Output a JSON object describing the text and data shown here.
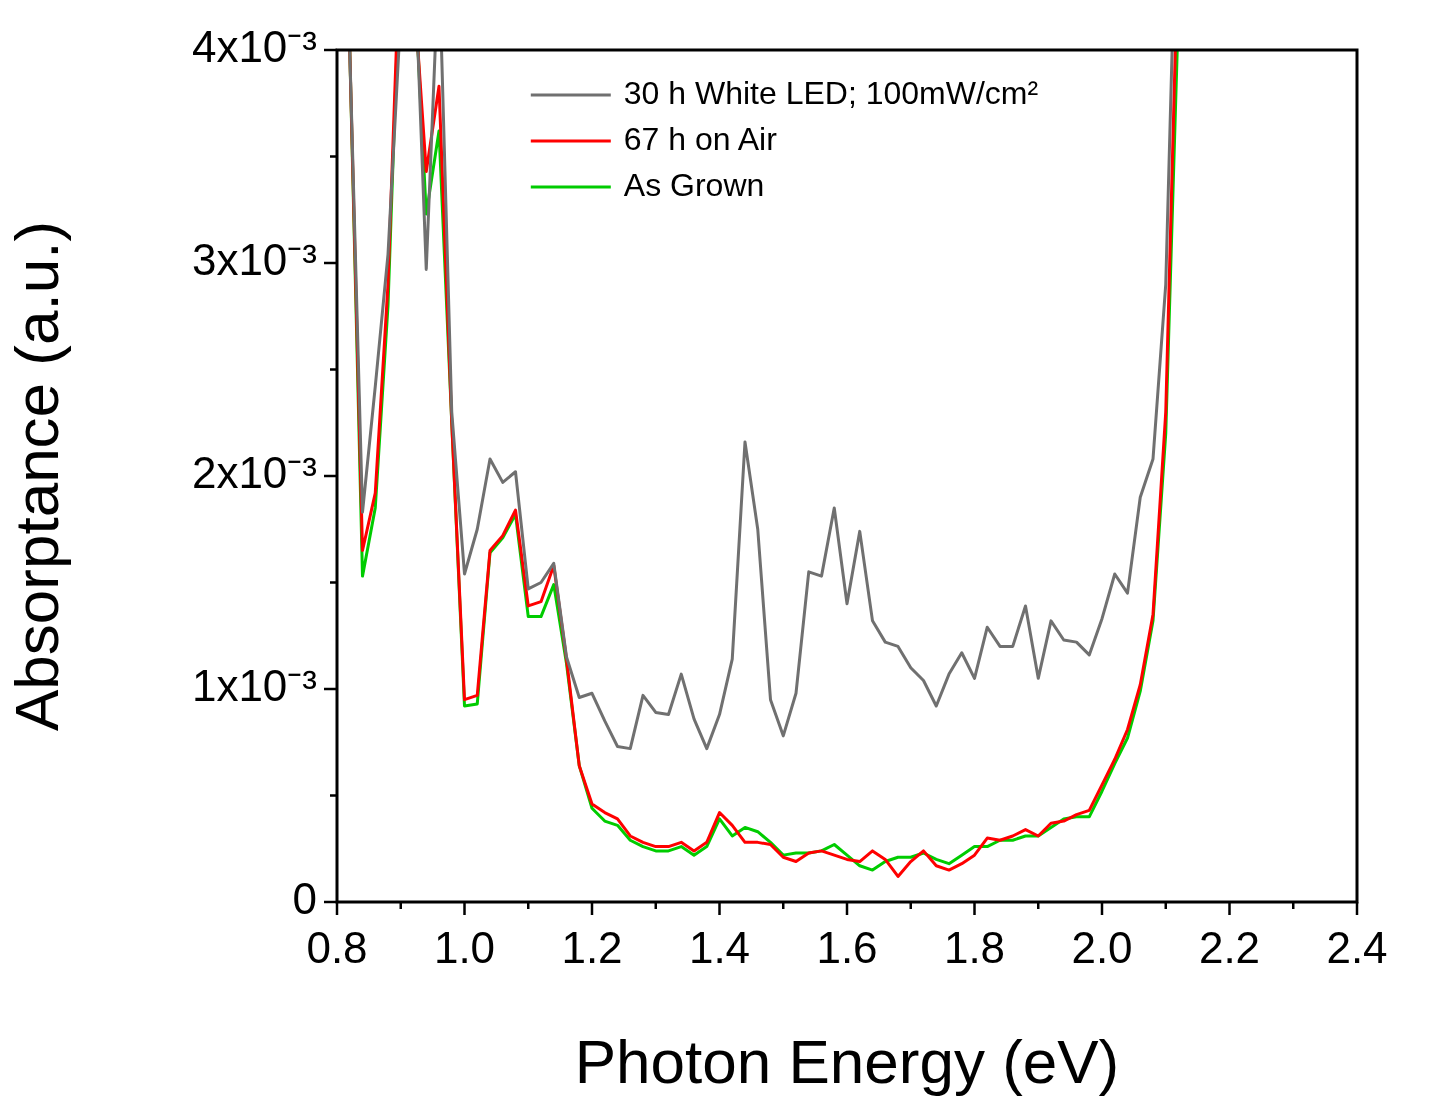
{
  "chart_data": {
    "type": "line",
    "xlabel": "Photon Energy (eV)",
    "ylabel": "Absorptance (a.u.)",
    "xlim": [
      0.8,
      2.4
    ],
    "xticks": [
      0.8,
      {
        "value": 0.9,
        "label": null
      },
      {
        "value": 1.0,
        "label": "1.0"
      },
      {
        "value": 1.1,
        "label": null
      },
      1.2,
      {
        "value": 1.3,
        "label": null
      },
      1.4,
      {
        "value": 1.5,
        "label": null
      },
      1.6,
      {
        "value": 1.7,
        "label": null
      },
      1.8,
      {
        "value": 1.9,
        "label": null
      },
      {
        "value": 2.0,
        "label": "2.0"
      },
      {
        "value": 2.1,
        "label": null
      },
      2.2,
      {
        "value": 2.3,
        "label": null
      },
      2.4
    ],
    "ylim": [
      0,
      0.004
    ],
    "yticks": [
      0,
      {
        "value": 0.0005,
        "label": null
      },
      {
        "value": 0.001,
        "label": "1x10⁻³"
      },
      {
        "value": 0.0015,
        "label": null
      },
      {
        "value": 0.002,
        "label": "2x10⁻³"
      },
      {
        "value": 0.0025,
        "label": null
      },
      {
        "value": 0.003,
        "label": "3x10⁻³"
      },
      {
        "value": 0.0035,
        "label": null
      },
      {
        "value": 0.004,
        "label": "4x10⁻³"
      }
    ],
    "grid": false,
    "legend": "top",
    "marker": "none",
    "line_style": "solid",
    "series": [
      {
        "name": "30 h White LED; 100mW/cm²",
        "color": "#707070",
        "x": [
          0.82,
          0.84,
          0.86,
          0.88,
          0.897,
          0.91,
          0.927,
          0.94,
          0.954,
          0.96,
          0.964,
          0.98,
          1.0,
          1.02,
          1.04,
          1.06,
          1.08,
          1.1,
          1.12,
          1.14,
          1.16,
          1.18,
          1.2,
          1.22,
          1.24,
          1.26,
          1.28,
          1.3,
          1.32,
          1.34,
          1.36,
          1.38,
          1.4,
          1.42,
          1.44,
          1.46,
          1.48,
          1.5,
          1.52,
          1.54,
          1.56,
          1.58,
          1.6,
          1.62,
          1.64,
          1.66,
          1.68,
          1.7,
          1.72,
          1.74,
          1.76,
          1.78,
          1.8,
          1.82,
          1.84,
          1.86,
          1.88,
          1.9,
          1.92,
          1.94,
          1.96,
          1.98,
          2.0,
          2.02,
          2.04,
          2.06,
          2.08,
          2.1,
          2.11
        ],
        "values": [
          0.004,
          0.00183,
          0.00242,
          0.00304,
          0.004,
          null,
          0.004,
          0.00297,
          0.004,
          null,
          0.004,
          0.0023,
          0.00154,
          0.00175,
          0.00208,
          0.00197,
          0.00202,
          0.00147,
          0.0015,
          0.00159,
          0.00115,
          0.00096,
          0.00098,
          0.00085,
          0.00073,
          0.00072,
          0.00097,
          0.00089,
          0.00088,
          0.00107,
          0.00086,
          0.00072,
          0.00088,
          0.00114,
          0.00216,
          0.00175,
          0.00095,
          0.00078,
          0.00098,
          0.00155,
          0.00153,
          0.00185,
          0.0014,
          0.00174,
          0.00132,
          0.00122,
          0.0012,
          0.0011,
          0.00104,
          0.00092,
          0.00107,
          0.00117,
          0.00105,
          0.00129,
          0.0012,
          0.0012,
          0.00139,
          0.00105,
          0.00132,
          0.00123,
          0.00122,
          0.00116,
          0.00133,
          0.00154,
          0.00145,
          0.0019,
          0.00208,
          0.0029,
          0.004
        ]
      },
      {
        "name": "67 h on Air",
        "color": "#ff0000",
        "x": [
          0.82,
          0.84,
          0.86,
          0.88,
          0.893,
          0.91,
          0.927,
          0.94,
          0.96,
          0.98,
          1.0,
          1.02,
          1.04,
          1.06,
          1.08,
          1.1,
          1.12,
          1.14,
          1.16,
          1.18,
          1.2,
          1.22,
          1.24,
          1.26,
          1.28,
          1.3,
          1.32,
          1.34,
          1.36,
          1.38,
          1.4,
          1.42,
          1.44,
          1.46,
          1.48,
          1.5,
          1.52,
          1.54,
          1.56,
          1.58,
          1.6,
          1.62,
          1.64,
          1.66,
          1.68,
          1.7,
          1.72,
          1.74,
          1.76,
          1.78,
          1.8,
          1.82,
          1.84,
          1.86,
          1.88,
          1.9,
          1.92,
          1.94,
          1.96,
          1.98,
          2.0,
          2.02,
          2.04,
          2.06,
          2.08,
          2.1,
          2.115
        ],
        "values": [
          0.004,
          0.00165,
          0.00192,
          0.0029,
          0.004,
          null,
          0.004,
          0.00343,
          0.00383,
          0.00225,
          0.00095,
          0.00097,
          0.00165,
          0.00172,
          0.00184,
          0.00139,
          0.00141,
          0.00158,
          0.00114,
          0.00064,
          0.00046,
          0.00042,
          0.00039,
          0.00031,
          0.00028,
          0.00026,
          0.00026,
          0.00028,
          0.00024,
          0.00028,
          0.00042,
          0.00036,
          0.00028,
          0.00028,
          0.00027,
          0.00021,
          0.00019,
          0.00023,
          0.00024,
          0.00022,
          0.0002,
          0.00019,
          0.00024,
          0.0002,
          0.00012,
          0.00019,
          0.00024,
          0.00017,
          0.00015,
          0.00018,
          0.00022,
          0.0003,
          0.00029,
          0.00031,
          0.00034,
          0.00031,
          0.00037,
          0.00038,
          0.00041,
          0.00043,
          0.00055,
          0.00067,
          0.00081,
          0.00102,
          0.00135,
          0.0023,
          0.004
        ]
      },
      {
        "name": "As Grown",
        "color": "#00cc00",
        "x": [
          0.82,
          0.84,
          0.86,
          0.88,
          0.894,
          0.91,
          0.927,
          0.94,
          0.96,
          0.98,
          1.0,
          1.02,
          1.04,
          1.06,
          1.08,
          1.1,
          1.12,
          1.14,
          1.16,
          1.18,
          1.2,
          1.22,
          1.24,
          1.26,
          1.28,
          1.3,
          1.32,
          1.34,
          1.36,
          1.38,
          1.4,
          1.42,
          1.44,
          1.46,
          1.48,
          1.5,
          1.52,
          1.54,
          1.56,
          1.58,
          1.6,
          1.62,
          1.64,
          1.66,
          1.68,
          1.7,
          1.72,
          1.74,
          1.76,
          1.78,
          1.8,
          1.82,
          1.84,
          1.86,
          1.88,
          1.9,
          1.92,
          1.94,
          1.96,
          1.98,
          2.0,
          2.02,
          2.04,
          2.06,
          2.08,
          2.1,
          2.118
        ],
        "values": [
          0.004,
          0.00153,
          0.00185,
          0.0028,
          0.004,
          null,
          0.004,
          0.00323,
          0.00362,
          0.00225,
          0.00092,
          0.00093,
          0.00164,
          0.00171,
          0.00182,
          0.00134,
          0.00134,
          0.00149,
          0.00112,
          0.00064,
          0.00044,
          0.00038,
          0.00036,
          0.00029,
          0.00026,
          0.00024,
          0.00024,
          0.00026,
          0.00022,
          0.00026,
          0.00039,
          0.00031,
          0.00035,
          0.00033,
          0.00028,
          0.00022,
          0.00023,
          0.00023,
          0.00024,
          0.00027,
          0.00022,
          0.00017,
          0.00015,
          0.00019,
          0.00021,
          0.00021,
          0.00023,
          0.0002,
          0.00018,
          0.00022,
          0.00026,
          0.00026,
          0.00029,
          0.00029,
          0.00031,
          0.00031,
          0.00035,
          0.00039,
          0.0004,
          0.0004,
          0.00052,
          0.00065,
          0.00077,
          0.00099,
          0.00132,
          0.0022,
          0.004
        ]
      }
    ]
  }
}
